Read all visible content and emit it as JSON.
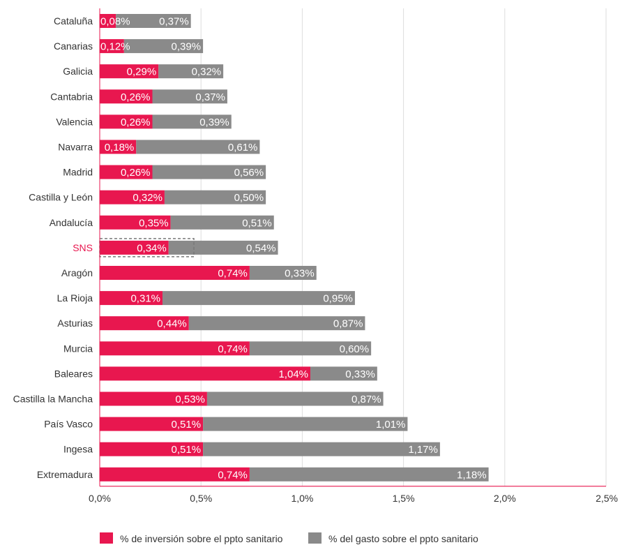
{
  "chart_data": {
    "type": "bar",
    "orientation": "horizontal",
    "stacked": true,
    "categories": [
      "Cataluña",
      "Canarias",
      "Galicia",
      "Cantabria",
      "Valencia",
      "Navarra",
      "Madrid",
      "Castilla y León",
      "Andalucía",
      "SNS",
      "Aragón",
      "La Rioja",
      "Asturias",
      "Murcia",
      "Baleares",
      "Castilla la Mancha",
      "País Vasco",
      "Ingesa",
      "Extremadura"
    ],
    "highlight_category": "SNS",
    "series": [
      {
        "name": "% de inversión sobre el ppto sanitario",
        "color": "#e8174f",
        "values": [
          0.08,
          0.12,
          0.29,
          0.26,
          0.26,
          0.18,
          0.26,
          0.32,
          0.35,
          0.34,
          0.74,
          0.31,
          0.44,
          0.74,
          1.04,
          0.53,
          0.51,
          0.51,
          0.74
        ],
        "labels": [
          "0,08%",
          "0,12%",
          "0,29%",
          "0,26%",
          "0,26%",
          "0,18%",
          "0,26%",
          "0,32%",
          "0,35%",
          "0,34%",
          "0,74%",
          "0,31%",
          "0,44%",
          "0,74%",
          "1,04%",
          "0,53%",
          "0,51%",
          "0,51%",
          "0,74%"
        ]
      },
      {
        "name": "% del gasto sobre el ppto sanitario",
        "color": "#8a8a8a",
        "values": [
          0.37,
          0.39,
          0.32,
          0.37,
          0.39,
          0.61,
          0.56,
          0.5,
          0.51,
          0.54,
          0.33,
          0.95,
          0.87,
          0.6,
          0.33,
          0.87,
          1.01,
          1.17,
          1.18
        ],
        "labels": [
          "0,37%",
          "0,39%",
          "0,32%",
          "0,37%",
          "0,39%",
          "0,61%",
          "0,56%",
          "0,50%",
          "0,51%",
          "0,54%",
          "0,33%",
          "0,95%",
          "0,87%",
          "0,60%",
          "0,33%",
          "0,87%",
          "1,01%",
          "1,17%",
          "1,18%"
        ]
      }
    ],
    "xlim": [
      0,
      2.5
    ],
    "xticks": [
      0,
      0.5,
      1.0,
      1.5,
      2.0,
      2.5
    ],
    "xtick_labels": [
      "0,0%",
      "0,5%",
      "1,0%",
      "1,5%",
      "2,0%",
      "2,5%"
    ],
    "grid": "vertical",
    "legend_position": "bottom"
  }
}
